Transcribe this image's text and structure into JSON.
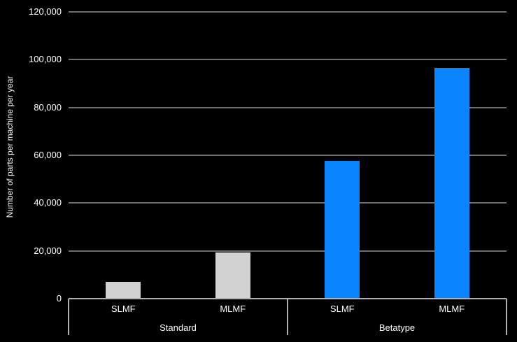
{
  "chart_data": {
    "type": "bar",
    "title": "",
    "xlabel": "",
    "ylabel": "Number of parts per machine per year",
    "ylim": [
      0,
      120000
    ],
    "grid": true,
    "legend_position": "none",
    "background_color": "#000000",
    "yticks": [
      {
        "value": 0,
        "label": "0"
      },
      {
        "value": 20000,
        "label": "20,000"
      },
      {
        "value": 40000,
        "label": "40,000"
      },
      {
        "value": 60000,
        "label": "60,000"
      },
      {
        "value": 80000,
        "label": "80,000"
      },
      {
        "value": 100000,
        "label": "100,000"
      },
      {
        "value": 120000,
        "label": "120,000"
      }
    ],
    "groups": [
      {
        "label": "Standard",
        "bar_color": "#d2d2d2",
        "bars": [
          {
            "category": "SLMF",
            "value": 7000
          },
          {
            "category": "MLMF",
            "value": 19300
          }
        ]
      },
      {
        "label": "Betatype",
        "bar_color": "#0a84ff",
        "bars": [
          {
            "category": "SLMF",
            "value": 57700
          },
          {
            "category": "MLMF",
            "value": 96600
          }
        ]
      }
    ],
    "colors": {
      "gridline": "#6e6e6e",
      "axis_line": "#b0b0b0",
      "text": "#ffffff",
      "standard_bar": "#d2d2d2",
      "betatype_bar": "#0a84ff"
    }
  }
}
